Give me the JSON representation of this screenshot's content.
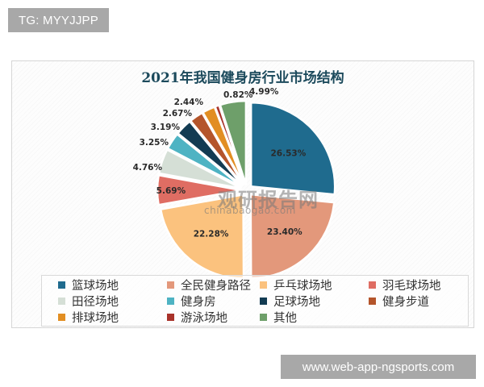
{
  "header_tag": "TG: MYYJJPP",
  "footer_tag": "www.web-app-ngsports.com",
  "watermark": {
    "cn": "观研报告网",
    "en": "chinabaogao.com"
  },
  "chart_data": {
    "type": "pie",
    "title": "2021年我国健身房行业市场结构",
    "exploded": true,
    "start_angle": "12 o'clock, clockwise",
    "categories": [
      "篮球场地",
      "全民健身路径",
      "乒乓球场地",
      "羽毛球场地",
      "田径场地",
      "健身房",
      "足球场地",
      "健身步道",
      "排球场地",
      "游泳场地",
      "其他"
    ],
    "values": [
      26.53,
      23.4,
      22.28,
      5.69,
      4.76,
      3.25,
      3.19,
      2.67,
      2.44,
      0.82,
      4.99
    ],
    "labels": [
      "26.53%",
      "23.40%",
      "22.28%",
      "5.69%",
      "4.76%",
      "3.25%",
      "3.19%",
      "2.67%",
      "2.44%",
      "0.82%",
      "4.99%"
    ],
    "colors": [
      "#1f6b8e",
      "#e3987b",
      "#fbc27e",
      "#df6d63",
      "#d5dfd6",
      "#4eb3c3",
      "#123b52",
      "#b4552b",
      "#e28e22",
      "#a8322a",
      "#6e9f6a"
    ],
    "label_inside": [
      true,
      true,
      true,
      true,
      false,
      false,
      false,
      false,
      false,
      false,
      false
    ],
    "legend_position": "bottom",
    "legend_columns": 4
  }
}
